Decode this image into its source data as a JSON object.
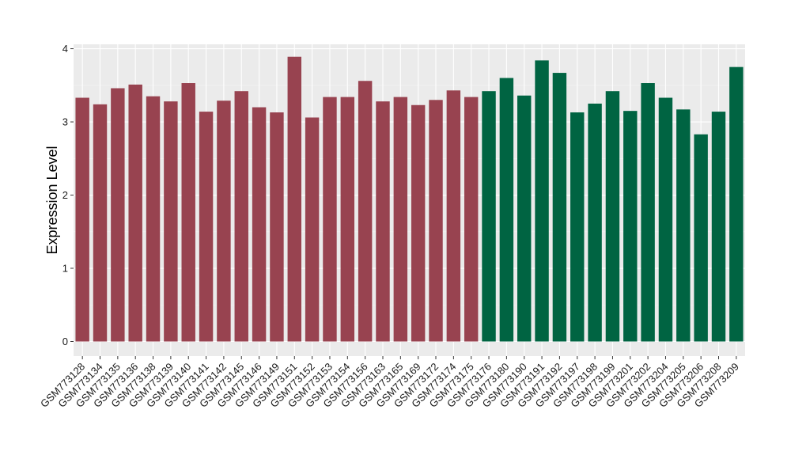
{
  "chart_data": {
    "type": "bar",
    "title": "",
    "xlabel": "",
    "ylabel": "Expression Level",
    "ylim": [
      -0.2,
      4.06
    ],
    "yticks": [
      0,
      1,
      2,
      3,
      4
    ],
    "grid": true,
    "background": "#ebebeb",
    "categories": [
      "GSM773128",
      "GSM773134",
      "GSM773135",
      "GSM773136",
      "GSM773138",
      "GSM773139",
      "GSM773140",
      "GSM773141",
      "GSM773142",
      "GSM773145",
      "GSM773146",
      "GSM773149",
      "GSM773151",
      "GSM773152",
      "GSM773153",
      "GSM773154",
      "GSM773156",
      "GSM773163",
      "GSM773165",
      "GSM773169",
      "GSM773172",
      "GSM773174",
      "GSM773175",
      "GSM773176",
      "GSM773180",
      "GSM773190",
      "GSM773191",
      "GSM773192",
      "GSM773197",
      "GSM773198",
      "GSM773199",
      "GSM773201",
      "GSM773202",
      "GSM773204",
      "GSM773205",
      "GSM773206",
      "GSM773208",
      "GSM773209"
    ],
    "values": [
      3.33,
      3.24,
      3.46,
      3.51,
      3.35,
      3.28,
      3.53,
      3.14,
      3.29,
      3.42,
      3.2,
      3.13,
      3.89,
      3.06,
      3.34,
      3.34,
      3.56,
      3.28,
      3.34,
      3.23,
      3.3,
      3.43,
      3.34,
      3.42,
      3.6,
      3.36,
      3.84,
      3.67,
      3.13,
      3.25,
      3.42,
      3.15,
      3.53,
      3.33,
      3.17,
      2.83,
      3.14,
      3.75
    ],
    "groups": [
      {
        "count": 23,
        "color": "#984350"
      },
      {
        "count": 15,
        "color": "#006442"
      }
    ]
  }
}
